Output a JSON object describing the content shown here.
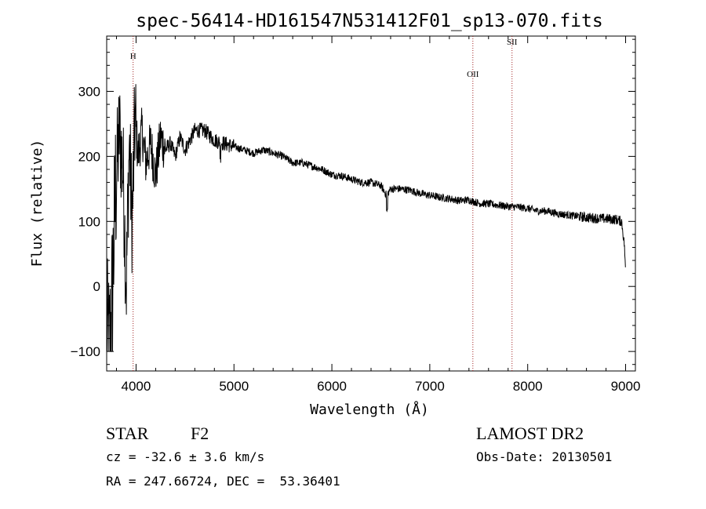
{
  "chart_data": {
    "type": "line",
    "title": "spec-56414-HD161547N531412F01_sp13-070.fits",
    "xlabel": "Wavelength (Å)",
    "ylabel": "Flux (relative)",
    "xlim": [
      3700,
      9100
    ],
    "ylim": [
      -130,
      385
    ],
    "x_ticks": [
      4000,
      5000,
      6000,
      7000,
      8000,
      9000
    ],
    "y_ticks": [
      -100,
      0,
      100,
      200,
      300
    ],
    "grid": false,
    "series": [
      {
        "x": [
          3700,
          3730,
          3760,
          3790,
          3830,
          3870,
          3900,
          3930,
          3960,
          3990,
          4020,
          4060,
          4100,
          4150,
          4200,
          4250,
          4300,
          4350,
          4400,
          4450,
          4500,
          4600,
          4700,
          4800,
          4900,
          5000,
          5100,
          5200,
          5300,
          5400,
          5500,
          5600,
          5700,
          5800,
          5900,
          6000,
          6100,
          6200,
          6300,
          6400,
          6500,
          6560,
          6600,
          6700,
          6800,
          6900,
          7000,
          7100,
          7200,
          7300,
          7400,
          7500,
          7600,
          7700,
          7800,
          7900,
          8000,
          8100,
          8200,
          8300,
          8400,
          8500,
          8600,
          8700,
          8800,
          8900,
          8960,
          8990,
          9000
        ],
        "y": [
          -80,
          -100,
          0,
          150,
          240,
          170,
          0,
          220,
          100,
          260,
          200,
          240,
          190,
          220,
          170,
          230,
          210,
          220,
          200,
          230,
          210,
          240,
          240,
          225,
          220,
          215,
          210,
          205,
          210,
          205,
          200,
          190,
          190,
          185,
          180,
          172,
          170,
          165,
          160,
          160,
          155,
          140,
          150,
          150,
          148,
          143,
          140,
          137,
          135,
          132,
          133,
          128,
          127,
          125,
          123,
          122,
          120,
          116,
          116,
          112,
          110,
          108,
          106,
          105,
          104,
          103,
          100,
          60,
          15
        ]
      }
    ],
    "annotations": [
      {
        "label": "H",
        "x": 3970,
        "y": 350
      },
      {
        "label": "OII",
        "x": 7440,
        "y": 322
      },
      {
        "label": "SII",
        "x": 7840,
        "y": 372
      }
    ]
  },
  "info": {
    "object_class": "STAR",
    "subclass": "F2",
    "survey": "LAMOST DR2",
    "redshift_text": "cz = -32.6 ± 3.6 km/s",
    "obs_date_text": "Obs-Date: 20130501",
    "coords_text": "RA = 247.66724, DEC =  53.36401"
  }
}
